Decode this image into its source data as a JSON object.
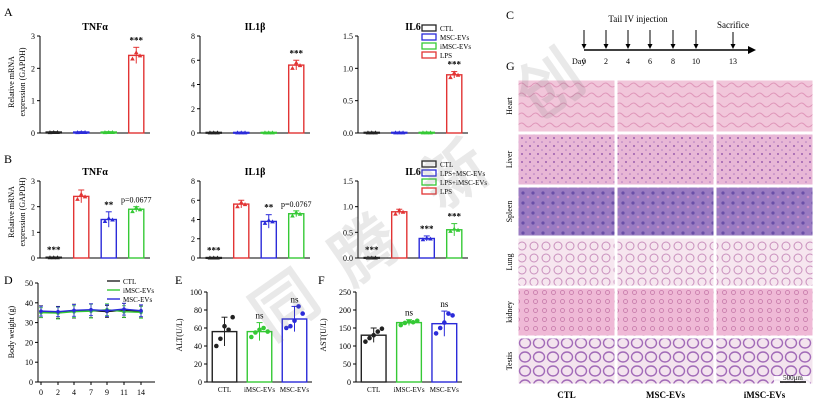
{
  "colors": {
    "CTL": "#222222",
    "MSC": "#2b2bd9",
    "iMSC": "#35c935",
    "LPS": "#e23434",
    "weight_ctl": "#222222",
    "weight_imsc": "#35c935",
    "weight_msc": "#2b2bd9"
  },
  "panel_letters": {
    "A": "A",
    "B": "B",
    "C": "C",
    "D": "D",
    "E": "E",
    "F": "F",
    "G": "G"
  },
  "ylabel_expr": "expression (GAPDH)",
  "ylabel_expr_top": "Relative mRNA",
  "legend_A": [
    "CTL",
    "MSC-EVs",
    "iMSC-EVs",
    "LPS"
  ],
  "legend_B": [
    "CTL",
    "LPS+MSC-EVs",
    "LPS+iMSC-EVs",
    "LPS"
  ],
  "timeline": {
    "title": "Tail IV injection",
    "end_label": "Sacrifice",
    "day_label": "Day",
    "days": [
      "0",
      "2",
      "4",
      "6",
      "8",
      "10",
      "13"
    ],
    "injection_days": [
      "0",
      "2",
      "4",
      "6",
      "8",
      "10"
    ]
  },
  "histology": {
    "rows": [
      "Heart",
      "Liver",
      "Spleen",
      "Lung",
      "kidney",
      "Testis"
    ],
    "cols": [
      "CTL",
      "MSC-EVs",
      "iMSC-EVs"
    ],
    "scale_bar": "500μm"
  },
  "chart_data": [
    {
      "id": "A1",
      "type": "bar",
      "title": "TNFα",
      "ylim": [
        0,
        3
      ],
      "yticks": [
        0,
        1,
        2,
        3
      ],
      "categories": [
        "CTL",
        "MSC-EVs",
        "iMSC-EVs",
        "LPS"
      ],
      "values": [
        0.03,
        0.03,
        0.03,
        2.4
      ],
      "errors": [
        0.01,
        0.01,
        0.01,
        0.25
      ],
      "annotations": [
        "",
        "",
        "",
        "***"
      ]
    },
    {
      "id": "A2",
      "type": "bar",
      "title": "IL1β",
      "ylim": [
        0,
        8
      ],
      "yticks": [
        0,
        2,
        4,
        6,
        8
      ],
      "categories": [
        "CTL",
        "MSC-EVs",
        "iMSC-EVs",
        "LPS"
      ],
      "values": [
        0.05,
        0.05,
        0.05,
        5.6
      ],
      "errors": [
        0.02,
        0.02,
        0.02,
        0.4
      ],
      "annotations": [
        "",
        "",
        "",
        "***"
      ]
    },
    {
      "id": "A3",
      "type": "bar",
      "title": "IL6",
      "ylim": [
        0,
        1.5
      ],
      "yticks": [
        0.0,
        0.5,
        1.0,
        1.5
      ],
      "categories": [
        "CTL",
        "MSC-EVs",
        "iMSC-EVs",
        "LPS"
      ],
      "values": [
        0.01,
        0.01,
        0.01,
        0.9
      ],
      "errors": [
        0.005,
        0.005,
        0.005,
        0.05
      ],
      "annotations": [
        "",
        "",
        "",
        "***"
      ]
    },
    {
      "id": "B1",
      "type": "bar",
      "title": "TNFα",
      "ylim": [
        0,
        3
      ],
      "yticks": [
        0,
        1,
        2,
        3
      ],
      "categories": [
        "CTL",
        "LPS",
        "LPS+MSC-EVs",
        "LPS+iMSC-EVs"
      ],
      "values": [
        0.03,
        2.4,
        1.5,
        1.9
      ],
      "errors": [
        0.01,
        0.25,
        0.3,
        0.1
      ],
      "annotations": [
        "***",
        "",
        "**",
        "p=0.0677"
      ]
    },
    {
      "id": "B2",
      "type": "bar",
      "title": "IL1β",
      "ylim": [
        0,
        8
      ],
      "yticks": [
        0,
        2,
        4,
        6,
        8
      ],
      "categories": [
        "CTL",
        "LPS",
        "LPS+MSC-EVs",
        "LPS+iMSC-EVs"
      ],
      "values": [
        0.05,
        5.6,
        3.8,
        4.6
      ],
      "errors": [
        0.02,
        0.4,
        0.7,
        0.3
      ],
      "annotations": [
        "***",
        "",
        "**",
        "p=0.0767"
      ]
    },
    {
      "id": "B3",
      "type": "bar",
      "title": "IL6",
      "ylim": [
        0,
        1.5
      ],
      "yticks": [
        0.0,
        0.5,
        1.0,
        1.5
      ],
      "categories": [
        "CTL",
        "LPS",
        "LPS+MSC-EVs",
        "LPS+iMSC-EVs"
      ],
      "values": [
        0.01,
        0.9,
        0.38,
        0.55
      ],
      "errors": [
        0.005,
        0.05,
        0.05,
        0.12
      ],
      "annotations": [
        "***",
        "",
        "***",
        "***"
      ]
    },
    {
      "id": "D",
      "type": "line",
      "ylabel": "Body weight (g)",
      "ylim": [
        0,
        50
      ],
      "yticks": [
        0,
        10,
        20,
        30,
        40,
        50
      ],
      "x": [
        0,
        2,
        4,
        7,
        9,
        11,
        14
      ],
      "series": [
        {
          "name": "CTL",
          "values": [
            35.5,
            35.2,
            35.8,
            36.0,
            35.6,
            36.2,
            35.8
          ],
          "errors": [
            3,
            3,
            3.5,
            3.5,
            3,
            3.5,
            3
          ]
        },
        {
          "name": "iMSC-EVs",
          "values": [
            35.0,
            34.8,
            35.5,
            35.8,
            36.5,
            35.5,
            35.2
          ],
          "errors": [
            2.5,
            3,
            3,
            3.5,
            3,
            3,
            3
          ]
        },
        {
          "name": "MSC-EVs",
          "values": [
            35.8,
            35.5,
            36.2,
            36.5,
            36.0,
            36.8,
            36.0
          ],
          "errors": [
            2.5,
            2.5,
            3,
            3,
            3,
            3,
            3
          ]
        }
      ]
    },
    {
      "id": "E",
      "type": "bar",
      "ylabel": "ALT(U/L)",
      "ylim": [
        0,
        100
      ],
      "yticks": [
        0,
        20,
        40,
        60,
        80,
        100
      ],
      "categories": [
        "CTL",
        "iMSC-EVs",
        "MSC-EVs"
      ],
      "values": [
        56,
        56,
        70
      ],
      "errors": [
        16,
        10,
        14
      ],
      "annotations": [
        "",
        "ns",
        "ns"
      ],
      "points": [
        [
          40,
          48,
          62,
          58,
          72
        ],
        [
          50,
          55,
          58,
          60,
          56
        ],
        [
          60,
          62,
          68,
          84,
          76
        ]
      ]
    },
    {
      "id": "F",
      "type": "bar",
      "ylabel": "AST(U/L)",
      "ylim": [
        0,
        250
      ],
      "yticks": [
        0,
        50,
        100,
        150,
        200,
        250
      ],
      "categories": [
        "CTL",
        "iMSC-EVs",
        "MSC-EVs"
      ],
      "values": [
        130,
        165,
        162
      ],
      "errors": [
        20,
        8,
        35
      ],
      "annotations": [
        "",
        "ns",
        "ns"
      ],
      "points": [
        [
          112,
          122,
          130,
          140,
          148
        ],
        [
          158,
          164,
          168,
          166,
          170
        ],
        [
          135,
          150,
          165,
          190,
          185
        ]
      ]
    }
  ]
}
